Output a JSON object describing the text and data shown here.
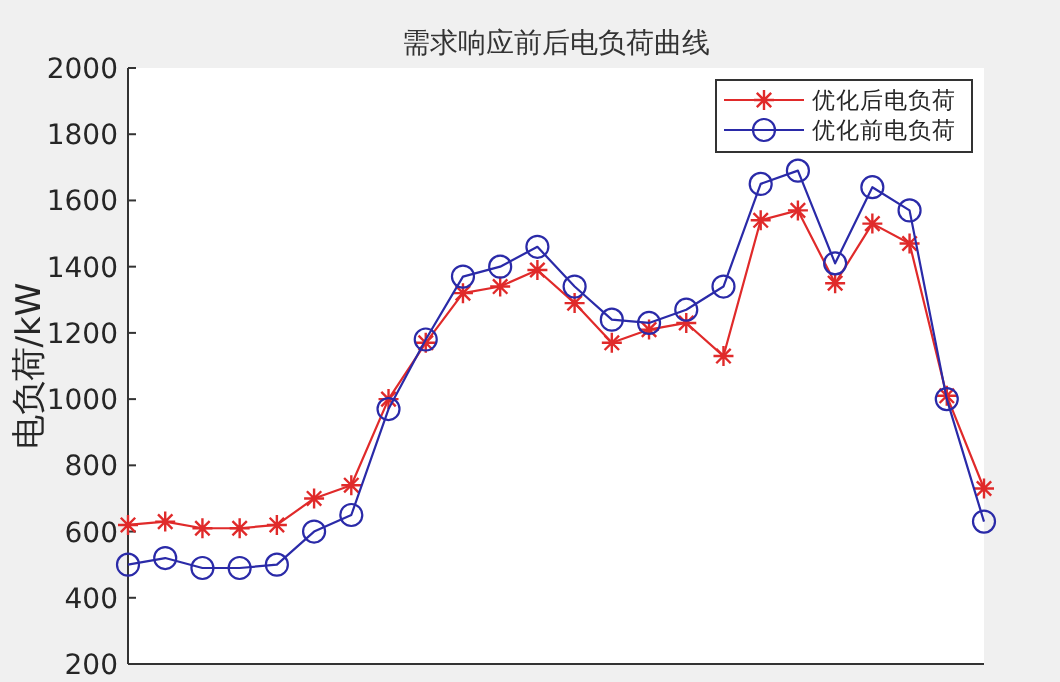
{
  "chart_data": {
    "type": "line",
    "title": "需求响应前后电负荷曲线",
    "ylabel": "电负荷/kW",
    "categories": [
      null,
      null,
      null,
      null,
      null,
      null,
      null,
      null,
      null,
      null,
      null,
      null,
      null,
      null,
      null,
      null,
      null,
      null,
      null,
      null,
      null,
      null,
      null,
      null
    ],
    "ylim": [
      200,
      2000
    ],
    "yticks": [
      200,
      400,
      600,
      800,
      1000,
      1200,
      1400,
      1600,
      1800,
      2000
    ],
    "grid": false,
    "legend": "top right",
    "tick_labels": "y",
    "series": [
      {
        "name": "优化后电负荷",
        "color": "#e02a2a",
        "marker": "cross",
        "values": [
          620,
          630,
          610,
          610,
          620,
          700,
          740,
          1000,
          1170,
          1320,
          1340,
          1390,
          1290,
          1170,
          1210,
          1230,
          1130,
          1540,
          1570,
          1350,
          1530,
          1470,
          1010,
          730
        ]
      },
      {
        "name": "优化前电负荷",
        "color": "#2a2aa8",
        "marker": "circle",
        "values": [
          500,
          520,
          490,
          490,
          500,
          600,
          650,
          970,
          1180,
          1370,
          1400,
          1460,
          1340,
          1240,
          1230,
          1270,
          1340,
          1650,
          1690,
          1410,
          1640,
          1570,
          1000,
          630
        ]
      }
    ]
  }
}
